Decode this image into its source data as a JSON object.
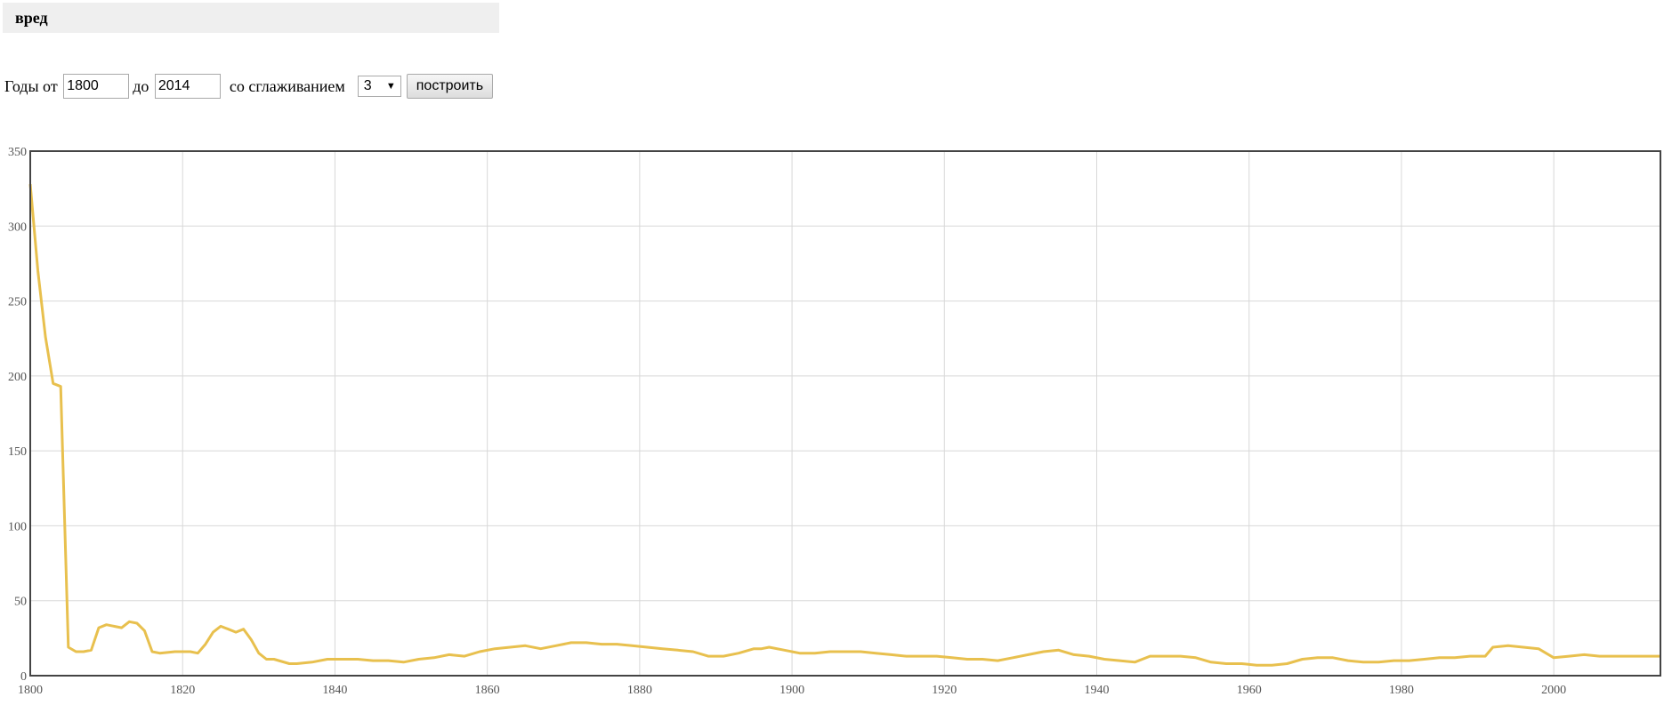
{
  "query": {
    "text": "вред"
  },
  "controls": {
    "years_from_label": "Годы от",
    "year_from": "1800",
    "to_label": "до",
    "year_to": "2014",
    "smoothing_label": "со сглаживанием",
    "smoothing_value": "3",
    "build_button": "построить"
  },
  "chart_data": {
    "type": "line",
    "title": "",
    "xlabel": "",
    "ylabel": "",
    "xlim": [
      1800,
      2014
    ],
    "ylim": [
      0,
      350
    ],
    "x_ticks": [
      1800,
      1820,
      1840,
      1860,
      1880,
      1900,
      1920,
      1940,
      1960,
      1980,
      2000
    ],
    "y_ticks": [
      0,
      50,
      100,
      150,
      200,
      250,
      300,
      350
    ],
    "grid": true,
    "legend": "none",
    "line_color": "#e8c04e",
    "series": [
      {
        "x": [
          1800,
          1801,
          1802,
          1803,
          1804,
          1805,
          1806,
          1807,
          1808,
          1809,
          1810,
          1812,
          1813,
          1814,
          1815,
          1816,
          1817,
          1819,
          1821,
          1822,
          1823,
          1824,
          1825,
          1826,
          1827,
          1828,
          1829,
          1830,
          1831,
          1832,
          1834,
          1835,
          1837,
          1839,
          1841,
          1843,
          1845,
          1847,
          1849,
          1851,
          1853,
          1855,
          1857,
          1859,
          1861,
          1863,
          1865,
          1867,
          1869,
          1871,
          1873,
          1875,
          1877,
          1879,
          1881,
          1883,
          1885,
          1887,
          1889,
          1891,
          1893,
          1895,
          1896,
          1897,
          1899,
          1901,
          1903,
          1905,
          1907,
          1909,
          1911,
          1913,
          1915,
          1917,
          1919,
          1921,
          1923,
          1925,
          1927,
          1929,
          1931,
          1933,
          1935,
          1937,
          1939,
          1941,
          1943,
          1945,
          1947,
          1949,
          1951,
          1953,
          1955,
          1957,
          1959,
          1961,
          1963,
          1965,
          1967,
          1969,
          1971,
          1973,
          1975,
          1977,
          1979,
          1981,
          1983,
          1985,
          1987,
          1989,
          1991,
          1992,
          1994,
          1996,
          1998,
          2000,
          2002,
          2004,
          2006,
          2008,
          2010,
          2012,
          2014
        ],
        "y": [
          328,
          270,
          226,
          195,
          193,
          19,
          16,
          16,
          17,
          32,
          34,
          32,
          36,
          35,
          30,
          16,
          15,
          16,
          16,
          15,
          21,
          29,
          33,
          31,
          29,
          31,
          24,
          15,
          11,
          11,
          8,
          8,
          9,
          11,
          11,
          11,
          10,
          10,
          9,
          11,
          12,
          14,
          13,
          16,
          18,
          19,
          20,
          18,
          20,
          22,
          22,
          21,
          21,
          20,
          19,
          18,
          17,
          16,
          13,
          13,
          15,
          18,
          18,
          19,
          17,
          15,
          15,
          16,
          16,
          16,
          15,
          14,
          13,
          13,
          13,
          12,
          11,
          11,
          10,
          12,
          14,
          16,
          17,
          14,
          13,
          11,
          10,
          9,
          13,
          13,
          13,
          12,
          9,
          8,
          8,
          7,
          7,
          8,
          11,
          12,
          12,
          10,
          9,
          9,
          10,
          10,
          11,
          12,
          12,
          13,
          13,
          19,
          20,
          19,
          18,
          12,
          13,
          14,
          13,
          13,
          13,
          13,
          13
        ]
      }
    ]
  }
}
